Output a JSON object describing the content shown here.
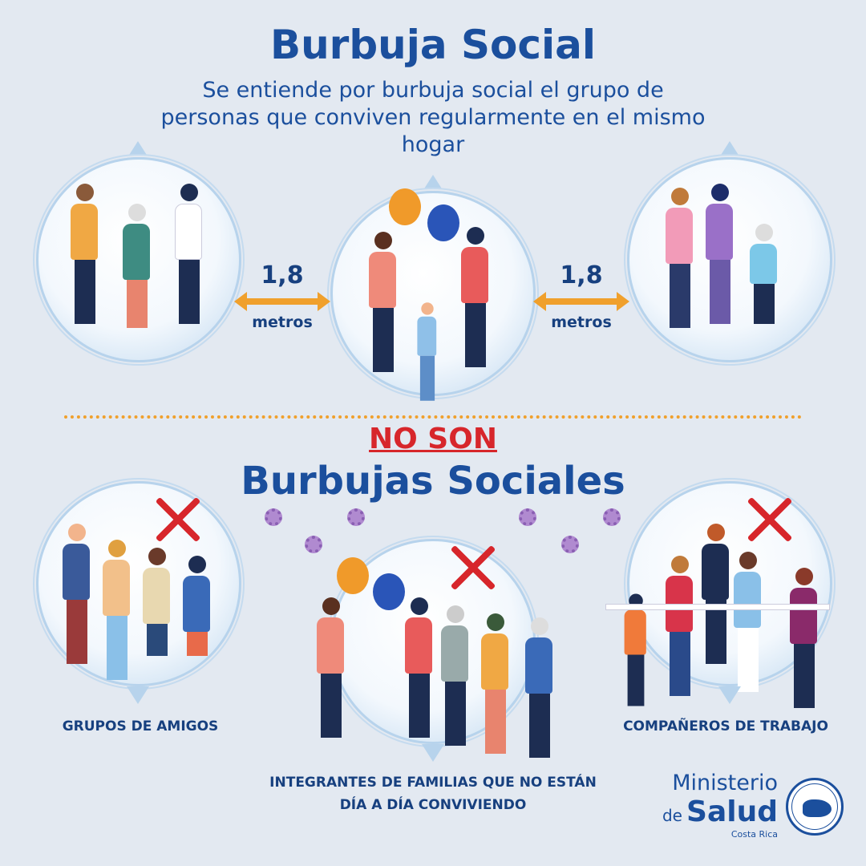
{
  "header": {
    "title": "Burbuja Social",
    "subtitle": "Se entiende por burbuja social el grupo de personas que conviven regularmente en el mismo hogar"
  },
  "distance": {
    "value": "1,8",
    "unit": "metros"
  },
  "section2": {
    "negation": "NO SON",
    "title": "Burbujas Sociales"
  },
  "examples": [
    {
      "label": "GRUPOS DE AMIGOS",
      "icon": "x-mark-icon"
    },
    {
      "label": "INTEGRANTES DE FAMILIAS QUE NO ESTÁN DÍA A DÍA CONVIVIENDO",
      "icon": "x-mark-icon"
    },
    {
      "label": "COMPAÑEROS DE TRABAJO",
      "icon": "x-mark-icon"
    }
  ],
  "logo": {
    "line1": "Ministerio",
    "line2a": "de",
    "line2b": "Salud",
    "line3": "Costa Rica",
    "seal_text": "MINISTERIO DE SALUD COSTA RICA BIENESTAR PARA TODOS"
  },
  "colors": {
    "title": "#1b4f9d",
    "accent": "#f0a02c",
    "negative": "#d7262b",
    "background": "#e3e9f1"
  }
}
